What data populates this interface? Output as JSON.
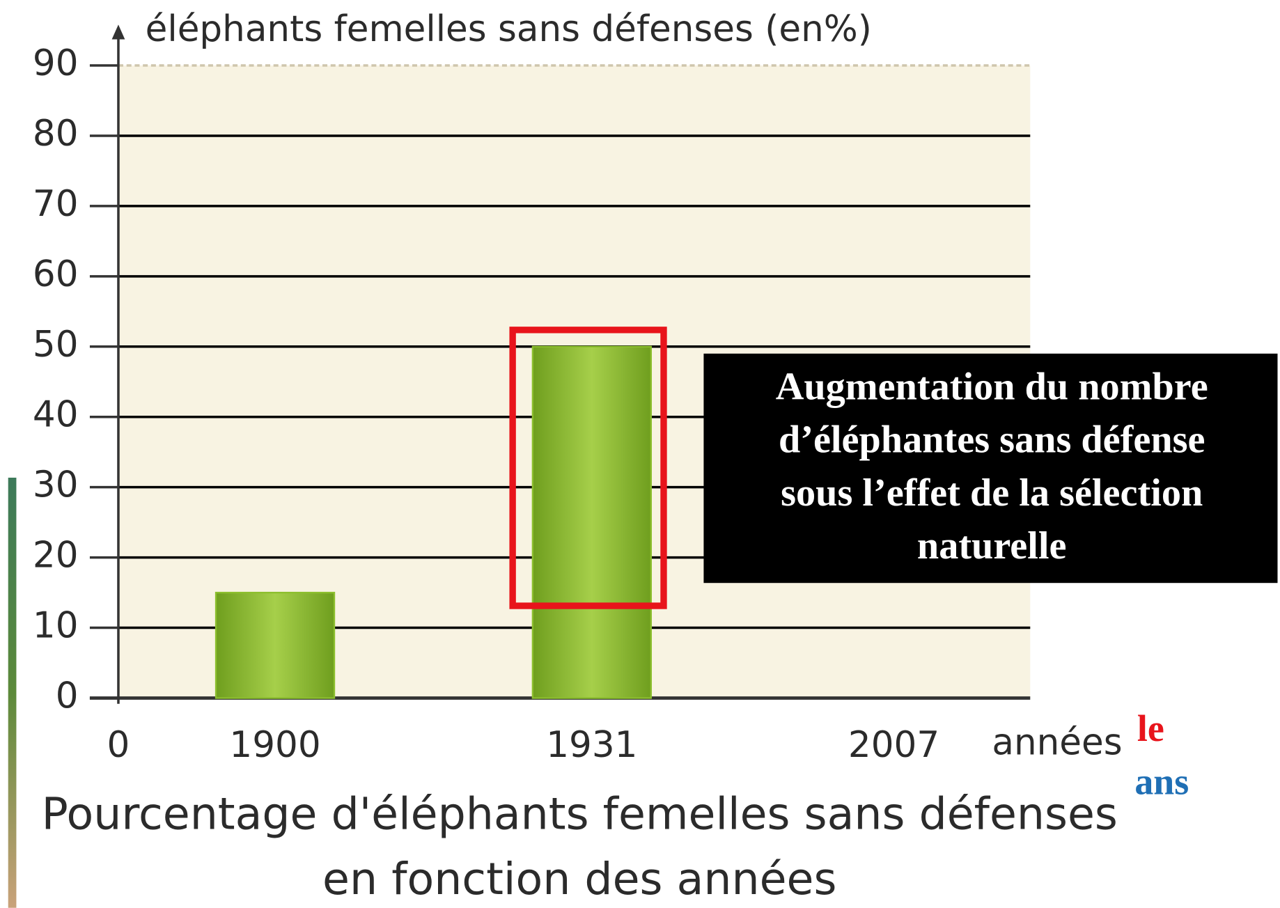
{
  "chart_data": {
    "type": "bar",
    "y_axis_label": "éléphants femelles sans défenses (en%)",
    "x_axis_label": "années",
    "x_start_label": "0",
    "title": "Pourcentage d'éléphants femelles sans défenses en fonction des années",
    "categories": [
      "1900",
      "1931",
      "2007"
    ],
    "values": [
      15,
      50,
      0
    ],
    "color": "#8cbf2e",
    "ylim": [
      0,
      90
    ],
    "yticks": [
      0,
      10,
      20,
      30,
      40,
      50,
      60,
      70,
      80,
      90
    ],
    "grid": true,
    "annotation": [
      "Augmentation du nombre",
      "d’éléphantes sans défense",
      "sous l’effet de la sélection",
      "naturelle"
    ],
    "highlight_category": "1931",
    "stray_texts": [
      "le",
      "ans"
    ]
  }
}
